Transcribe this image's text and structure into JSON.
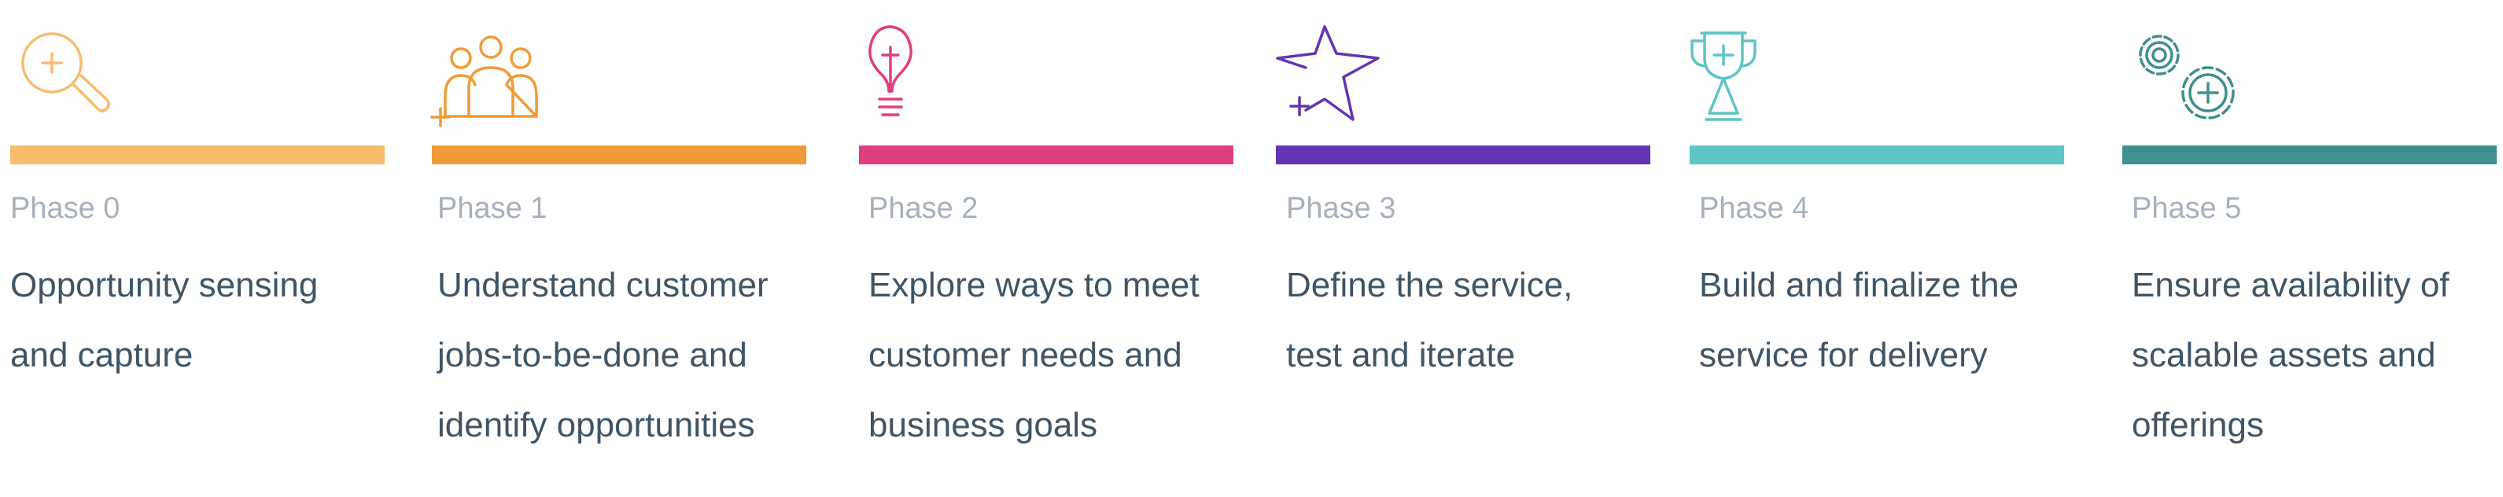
{
  "phases": [
    {
      "label": "Phase 0",
      "title_lines": [
        "Opportunity sensing",
        "and capture"
      ],
      "color": "#f5bd6c",
      "icon": "magnifier-plus-icon"
    },
    {
      "label": "Phase 1",
      "title_lines": [
        "Understand customer",
        "jobs-to-be-done and",
        "identify opportunities"
      ],
      "color": "#ef9c38",
      "icon": "group-people-icon"
    },
    {
      "label": "Phase 2",
      "title_lines": [
        "Explore ways to meet",
        "customer needs and",
        "business goals"
      ],
      "color": "#df3f7f",
      "icon": "lightbulb-icon"
    },
    {
      "label": "Phase 3",
      "title_lines": [
        "Define the service,",
        "test and iterate"
      ],
      "color": "#6334b3",
      "icon": "star-icon"
    },
    {
      "label": "Phase 4",
      "title_lines": [
        "Build and finalize the",
        "service for delivery"
      ],
      "color": "#5ec4c6",
      "icon": "trophy-icon"
    },
    {
      "label": "Phase 5",
      "title_lines": [
        "Ensure availability of",
        "scalable assets and",
        "offerings"
      ],
      "color": "#3f8f8c",
      "icon": "gears-icon"
    }
  ]
}
